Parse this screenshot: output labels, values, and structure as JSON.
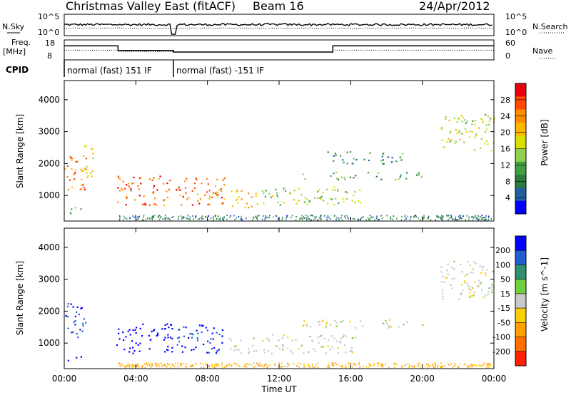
{
  "header": {
    "station": "Christmas Valley East (fitACF)",
    "beam": "Beam 16",
    "date": "24/Apr/2012"
  },
  "summary_panels": {
    "nsky_label": "N.Sky",
    "nsearch_label": "N.Search",
    "noise_ticks": [
      "10^5",
      "10^0"
    ],
    "freq_label_line1": "Freq.",
    "freq_label_line2": "[MHz]",
    "freq_ticks": [
      "18",
      "8"
    ],
    "nave_label": "Nave",
    "nave_ticks": [
      "60",
      "0"
    ],
    "cpid_label": "CPID",
    "cpid_segments": [
      {
        "label": "normal (fast) 151 IF",
        "start_hour": 0,
        "end_hour": 6.1
      },
      {
        "label": "normal (fast) -151 IF",
        "start_hour": 6.1,
        "end_hour": 24
      }
    ],
    "freq_profile": [
      {
        "t": 0,
        "mhz": 17
      },
      {
        "t": 3.0,
        "mhz": 17
      },
      {
        "t": 3.0,
        "mhz": 14
      },
      {
        "t": 6.1,
        "mhz": 14
      },
      {
        "t": 6.1,
        "mhz": 13
      },
      {
        "t": 15.0,
        "mhz": 13
      },
      {
        "t": 15.0,
        "mhz": 17
      },
      {
        "t": 24,
        "mhz": 17
      }
    ],
    "nave_profile": [
      {
        "t": 0,
        "n": 37
      },
      {
        "t": 3.0,
        "n": 37
      },
      {
        "t": 3.0,
        "n": 32
      },
      {
        "t": 6.1,
        "n": 32
      },
      {
        "t": 6.1,
        "n": 30
      },
      {
        "t": 15.0,
        "n": 30
      },
      {
        "t": 15.0,
        "n": 37
      },
      {
        "t": 24,
        "n": 37
      }
    ]
  },
  "axes": {
    "xlabel": "Time UT",
    "ylabel": "Slant Range [km]",
    "xticks": [
      "00:00",
      "04:00",
      "08:00",
      "12:00",
      "16:00",
      "20:00",
      "00:00"
    ],
    "yticks": [
      "1000",
      "2000",
      "3000",
      "4000"
    ]
  },
  "power_colorbar": {
    "title": "Power [dB]",
    "ticks": [
      "28",
      "24",
      "20",
      "16",
      "12",
      "8",
      "4"
    ],
    "colors": [
      "#e8000b",
      "#ff4a00",
      "#ff8c00",
      "#ffb700",
      "#d7e000",
      "#8fd14f",
      "#3fa040",
      "#2d7a3c",
      "#1f5fa0",
      "#0000ff"
    ]
  },
  "velocity_colorbar": {
    "title": "Velocity [m s^-1]",
    "ticks": [
      "200",
      "100",
      "50",
      "15",
      "-15",
      "-50",
      "-100",
      "-200"
    ],
    "colors": [
      "#0000ff",
      "#1f5fd0",
      "#2f8f6f",
      "#6fd040",
      "#c8c8c8",
      "#ffd000",
      "#ffa000",
      "#ff7000",
      "#ff2000"
    ]
  },
  "chart_data": [
    {
      "type": "heatmap",
      "title": "Power [dB]",
      "xlabel": "Time UT",
      "ylabel": "Slant Range [km]",
      "xlim": [
        0,
        24
      ],
      "ylim": [
        200,
        4600
      ],
      "colorbar_range": [
        0,
        30
      ],
      "regions": [
        {
          "t0": 0.0,
          "t1": 1.2,
          "r0": 1200,
          "r1": 2300,
          "power_db": 24
        },
        {
          "t0": 1.0,
          "t1": 1.6,
          "r0": 1500,
          "r1": 2600,
          "power_db": 16
        },
        {
          "t0": 0.1,
          "t1": 1.0,
          "r0": 450,
          "r1": 650,
          "power_db": 10
        },
        {
          "t0": 2.9,
          "t1": 6.0,
          "r0": 700,
          "r1": 1650,
          "power_db": 26
        },
        {
          "t0": 6.2,
          "t1": 9.0,
          "r0": 700,
          "r1": 1600,
          "power_db": 25
        },
        {
          "t0": 9.2,
          "t1": 10.8,
          "r0": 600,
          "r1": 1200,
          "power_db": 20
        },
        {
          "t0": 11.0,
          "t1": 16.5,
          "r0": 700,
          "r1": 1300,
          "power_db": 14
        },
        {
          "t0": 13.0,
          "t1": 20.0,
          "r0": 1500,
          "r1": 1750,
          "power_db": 10
        },
        {
          "t0": 14.5,
          "t1": 19.0,
          "r0": 2000,
          "r1": 2400,
          "power_db": 8
        },
        {
          "t0": 21.0,
          "t1": 24.0,
          "r0": 2400,
          "r1": 3600,
          "power_db": 16
        }
      ]
    },
    {
      "type": "heatmap",
      "title": "Velocity [m s^-1]",
      "xlabel": "Time UT",
      "ylabel": "Slant Range [km]",
      "xlim": [
        0,
        24
      ],
      "ylim": [
        200,
        4600
      ],
      "colorbar_range": [
        -200,
        200
      ],
      "regions": [
        {
          "t0": 0.0,
          "t1": 1.2,
          "r0": 1200,
          "r1": 2300,
          "velocity": 200
        },
        {
          "t0": 0.1,
          "t1": 1.0,
          "r0": 450,
          "r1": 650,
          "velocity": 220
        },
        {
          "t0": 2.9,
          "t1": 6.0,
          "r0": 700,
          "r1": 1650,
          "velocity": 240
        },
        {
          "t0": 6.2,
          "t1": 9.0,
          "r0": 700,
          "r1": 1600,
          "velocity": 200
        },
        {
          "t0": 9.2,
          "t1": 10.8,
          "r0": 600,
          "r1": 1200,
          "velocity": 0
        },
        {
          "t0": 11.0,
          "t1": 16.5,
          "r0": 700,
          "r1": 1300,
          "velocity": 0
        },
        {
          "t0": 13.0,
          "t1": 20.0,
          "r0": 1500,
          "r1": 1750,
          "velocity": 0
        },
        {
          "t0": 21.0,
          "t1": 24.0,
          "r0": 2400,
          "r1": 3600,
          "velocity": 0
        }
      ]
    }
  ]
}
